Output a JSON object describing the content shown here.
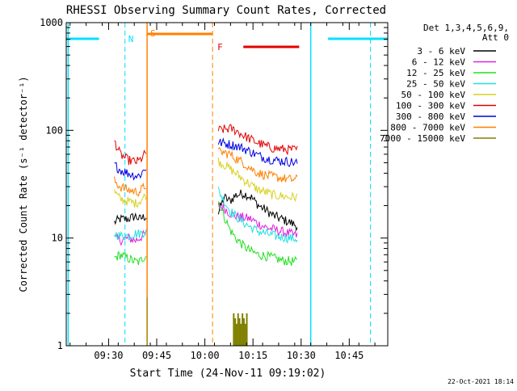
{
  "chart_data": {
    "type": "line",
    "title": "RHESSI Observing Summary Count Rates, Corrected",
    "xlabel": "Start Time (24-Nov-11 09:19:02)",
    "ylabel": "Corrected Count Rate (s⁻¹ detector⁻¹)",
    "yscale": "log",
    "ylim": [
      1,
      1000
    ],
    "xlim_minutes": [
      9.28,
      10.95
    ],
    "x_ticks": [
      {
        "t": 9.5,
        "label": "09:30"
      },
      {
        "t": 9.75,
        "label": "09:45"
      },
      {
        "t": 10.0,
        "label": "10:00"
      },
      {
        "t": 10.25,
        "label": "10:15"
      },
      {
        "t": 10.5,
        "label": "10:30"
      },
      {
        "t": 10.75,
        "label": "10:45"
      }
    ],
    "y_ticks": [
      {
        "v": 1,
        "label": "1"
      },
      {
        "v": 10,
        "label": "10"
      },
      {
        "v": 100,
        "label": "100"
      },
      {
        "v": 1000,
        "label": "1000"
      }
    ],
    "legend": {
      "header1": "Det 1,3,4,5,6,9,",
      "header2": "Att 0",
      "placement": "right"
    },
    "series": [
      {
        "name": "3 - 6 keV",
        "color": "#000000",
        "seg1": [
          [
            9.53,
            14
          ],
          [
            9.56,
            15
          ],
          [
            9.6,
            15
          ],
          [
            9.64,
            16
          ],
          [
            9.66,
            15
          ],
          [
            9.695,
            16
          ]
        ],
        "seg2": [
          [
            10.07,
            17
          ],
          [
            10.1,
            24
          ],
          [
            10.13,
            22
          ],
          [
            10.16,
            25
          ],
          [
            10.2,
            26
          ],
          [
            10.24,
            24
          ],
          [
            10.28,
            20
          ],
          [
            10.32,
            18
          ],
          [
            10.36,
            16
          ],
          [
            10.4,
            15
          ],
          [
            10.44,
            14
          ],
          [
            10.48,
            13
          ]
        ]
      },
      {
        "name": "6 - 12 keV",
        "color": "#e020e0",
        "seg1": [
          [
            9.53,
            10
          ],
          [
            9.56,
            9.5
          ],
          [
            9.6,
            10
          ],
          [
            9.64,
            9.5
          ],
          [
            9.66,
            10
          ],
          [
            9.695,
            11
          ]
        ],
        "seg2": [
          [
            10.07,
            20
          ],
          [
            10.1,
            19
          ],
          [
            10.13,
            17
          ],
          [
            10.16,
            16
          ],
          [
            10.2,
            15.5
          ],
          [
            10.24,
            15
          ],
          [
            10.28,
            13.5
          ],
          [
            10.32,
            12.5
          ],
          [
            10.36,
            12
          ],
          [
            10.4,
            11.5
          ],
          [
            10.44,
            11
          ],
          [
            10.48,
            10.5
          ]
        ]
      },
      {
        "name": "12 - 25 keV",
        "color": "#20e020",
        "seg1": [
          [
            9.53,
            6.5
          ],
          [
            9.56,
            7
          ],
          [
            9.6,
            6.5
          ],
          [
            9.64,
            6
          ],
          [
            9.66,
            6
          ],
          [
            9.695,
            7
          ]
        ],
        "seg2": [
          [
            10.07,
            22
          ],
          [
            10.1,
            16
          ],
          [
            10.13,
            12
          ],
          [
            10.16,
            10
          ],
          [
            10.2,
            8.5
          ],
          [
            10.24,
            7.5
          ],
          [
            10.28,
            7
          ],
          [
            10.32,
            6.8
          ],
          [
            10.36,
            6.5
          ],
          [
            10.4,
            6.2
          ],
          [
            10.44,
            6.1
          ],
          [
            10.48,
            6
          ]
        ]
      },
      {
        "name": "25 - 50 keV",
        "color": "#20e0e0",
        "seg1": [
          [
            9.53,
            11
          ],
          [
            9.56,
            10.5
          ],
          [
            9.6,
            10.5
          ],
          [
            9.64,
            11
          ],
          [
            9.66,
            11
          ],
          [
            9.695,
            11.5
          ]
        ],
        "seg2": [
          [
            10.07,
            28
          ],
          [
            10.1,
            22
          ],
          [
            10.13,
            18
          ],
          [
            10.16,
            16
          ],
          [
            10.2,
            14
          ],
          [
            10.24,
            12.5
          ],
          [
            10.28,
            11.5
          ],
          [
            10.32,
            11
          ],
          [
            10.36,
            10.5
          ],
          [
            10.4,
            10.2
          ],
          [
            10.44,
            10
          ],
          [
            10.48,
            9.8
          ]
        ]
      },
      {
        "name": "50 - 100 keV",
        "color": "#d8d020",
        "seg1": [
          [
            9.53,
            27
          ],
          [
            9.56,
            23
          ],
          [
            9.6,
            22
          ],
          [
            9.64,
            21
          ],
          [
            9.66,
            22
          ],
          [
            9.695,
            25
          ]
        ],
        "seg2": [
          [
            10.07,
            52
          ],
          [
            10.1,
            48
          ],
          [
            10.13,
            44
          ],
          [
            10.16,
            40
          ],
          [
            10.2,
            35
          ],
          [
            10.24,
            31
          ],
          [
            10.28,
            28
          ],
          [
            10.32,
            26.5
          ],
          [
            10.36,
            25
          ],
          [
            10.4,
            24.5
          ],
          [
            10.44,
            24
          ],
          [
            10.48,
            24
          ]
        ]
      },
      {
        "name": "100 - 300 keV",
        "color": "#e00000",
        "seg1": [
          [
            9.53,
            80
          ],
          [
            9.56,
            60
          ],
          [
            9.6,
            53
          ],
          [
            9.64,
            51
          ],
          [
            9.66,
            52
          ],
          [
            9.695,
            62
          ]
        ],
        "seg2": [
          [
            10.07,
            100
          ],
          [
            10.1,
            102
          ],
          [
            10.13,
            104
          ],
          [
            10.16,
            100
          ],
          [
            10.2,
            90
          ],
          [
            10.24,
            82
          ],
          [
            10.28,
            76
          ],
          [
            10.32,
            71
          ],
          [
            10.36,
            68
          ],
          [
            10.4,
            67
          ],
          [
            10.44,
            66
          ],
          [
            10.48,
            66
          ]
        ]
      },
      {
        "name": "300 - 800 keV",
        "color": "#0000e0",
        "seg1": [
          [
            9.53,
            48
          ],
          [
            9.56,
            43
          ],
          [
            9.6,
            40
          ],
          [
            9.64,
            38
          ],
          [
            9.66,
            38
          ],
          [
            9.695,
            45
          ]
        ],
        "seg2": [
          [
            10.07,
            77
          ],
          [
            10.1,
            76
          ],
          [
            10.13,
            74
          ],
          [
            10.16,
            72
          ],
          [
            10.2,
            68
          ],
          [
            10.24,
            63
          ],
          [
            10.28,
            58
          ],
          [
            10.32,
            55
          ],
          [
            10.36,
            53
          ],
          [
            10.4,
            52
          ],
          [
            10.44,
            51
          ],
          [
            10.48,
            50
          ]
        ]
      },
      {
        "name": "800 - 7000 keV",
        "color": "#ff8000",
        "seg1": [
          [
            9.53,
            34
          ],
          [
            9.56,
            30
          ],
          [
            9.6,
            28
          ],
          [
            9.64,
            27
          ],
          [
            9.66,
            27
          ],
          [
            9.695,
            31
          ]
        ],
        "seg2": [
          [
            10.07,
            63
          ],
          [
            10.1,
            62
          ],
          [
            10.13,
            60
          ],
          [
            10.16,
            55
          ],
          [
            10.2,
            50
          ],
          [
            10.24,
            44
          ],
          [
            10.28,
            40
          ],
          [
            10.32,
            38
          ],
          [
            10.36,
            37
          ],
          [
            10.4,
            36
          ],
          [
            10.44,
            35
          ],
          [
            10.48,
            35
          ]
        ]
      },
      {
        "name": "7000 - 15000 keV",
        "color": "#808000",
        "seg1": [],
        "seg2": []
      }
    ],
    "annotations": {
      "N_label": "N",
      "S_label": "S",
      "F_label": "F"
    },
    "timestamp": "22-Oct-2021 18:14"
  }
}
